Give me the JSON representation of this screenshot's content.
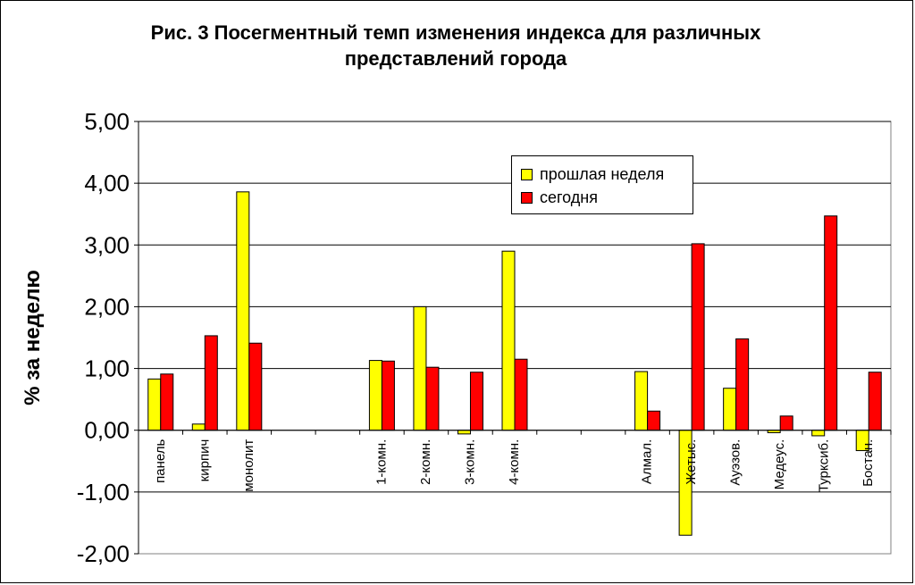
{
  "title_line1": "Рис. 3 Посегментный темп изменения индекса для различных",
  "title_line2": "представлений города",
  "legend": {
    "series1": "прошлая неделя",
    "series2": "сегодня"
  },
  "chart_data": {
    "type": "bar",
    "ylabel": "% за неделю",
    "xlabel": "",
    "ylim": [
      -2,
      5
    ],
    "yticks": [
      5,
      4,
      3,
      2,
      1,
      0,
      -1,
      -2
    ],
    "ytick_labels": [
      "5,00",
      "4,00",
      "3,00",
      "2,00",
      "1,00",
      "0,00",
      "-1,00",
      "-2,00"
    ],
    "grid": true,
    "legend_position": "top-right",
    "categories": [
      "панель",
      "кирпич",
      "монолит",
      "",
      "",
      "1-комн.",
      "2-комн.",
      "3-комн.",
      "4-комн.",
      "",
      "",
      "Алмал.",
      "Жетыс.",
      "Ауэзов.",
      "Медеус.",
      "Турксиб.",
      "Бостан."
    ],
    "series": [
      {
        "name": "прошлая неделя",
        "color": "#ffff00",
        "values": [
          0.83,
          0.1,
          3.86,
          null,
          null,
          1.13,
          2.0,
          -0.06,
          2.9,
          null,
          null,
          0.95,
          -1.7,
          0.68,
          -0.04,
          -0.09,
          -0.33
        ]
      },
      {
        "name": "сегодня",
        "color": "#ff0000",
        "values": [
          0.91,
          1.53,
          1.41,
          null,
          null,
          1.12,
          1.02,
          0.94,
          1.15,
          null,
          null,
          0.31,
          3.02,
          1.48,
          0.23,
          3.47,
          0.94
        ]
      }
    ]
  }
}
